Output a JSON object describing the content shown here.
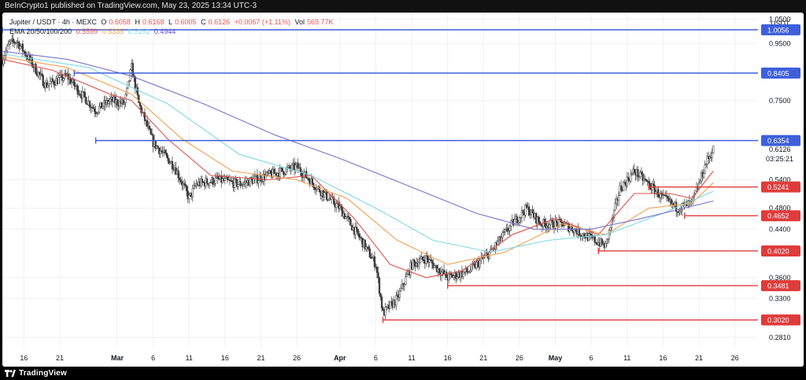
{
  "header": {
    "publisher_line": "BeInCrypto1 published on TradingView.com, May 23, 2025 13:34 UTC-3"
  },
  "legend": {
    "symbol": "Jupiter / USDT · 4h · MEXC",
    "ohlc": [
      {
        "label": "O",
        "value": "0.6058"
      },
      {
        "label": "H",
        "value": "0.6168"
      },
      {
        "label": "L",
        "value": "0.6005"
      },
      {
        "label": "C",
        "value": "0.6126"
      }
    ],
    "change": "+0.0067 (+1.11%)",
    "vol_label": "Vol",
    "vol_value": "569.77K",
    "ema_title": "EMA 20/50/100/200",
    "ema_values": [
      "0.5599",
      "0.5335",
      "0.5151",
      "0.4944"
    ]
  },
  "footer": {
    "brand": "TradingView"
  },
  "chart_data": {
    "type": "candlestick",
    "symbol": "Jupiter / USDT",
    "interval": "4h",
    "exchange": "MEXC",
    "ylabel": "USDT",
    "y_scale": "log",
    "ylim": [
      0.27,
      1.08
    ],
    "y_ticks": [
      {
        "value": 1.05,
        "label": "1.0500"
      },
      {
        "value": 0.95,
        "label": "0.9500"
      },
      {
        "value": 0.75,
        "label": "0.7500"
      },
      {
        "value": 0.54,
        "label": "0.5400"
      },
      {
        "value": 0.48,
        "label": "0.4800"
      },
      {
        "value": 0.44,
        "label": "0.4400"
      },
      {
        "value": 0.36,
        "label": "0.3600"
      },
      {
        "value": 0.33,
        "label": "0.3300"
      },
      {
        "value": 0.281,
        "label": "0.2810"
      }
    ],
    "x_ticks": [
      {
        "date": "2025-02-16",
        "label": "16"
      },
      {
        "date": "2025-02-21",
        "label": "21"
      },
      {
        "date": "2025-03-01",
        "label": "Mar"
      },
      {
        "date": "2025-03-06",
        "label": "6"
      },
      {
        "date": "2025-03-11",
        "label": "11"
      },
      {
        "date": "2025-03-16",
        "label": "16"
      },
      {
        "date": "2025-03-21",
        "label": "21"
      },
      {
        "date": "2025-03-26",
        "label": "26"
      },
      {
        "date": "2025-04-01",
        "label": "Apr"
      },
      {
        "date": "2025-04-06",
        "label": "6"
      },
      {
        "date": "2025-04-11",
        "label": "11"
      },
      {
        "date": "2025-04-16",
        "label": "16"
      },
      {
        "date": "2025-04-21",
        "label": "21"
      },
      {
        "date": "2025-04-26",
        "label": "26"
      },
      {
        "date": "2025-05-01",
        "label": "May"
      },
      {
        "date": "2025-05-06",
        "label": "6"
      },
      {
        "date": "2025-05-11",
        "label": "11"
      },
      {
        "date": "2025-05-16",
        "label": "16"
      },
      {
        "date": "2025-05-21",
        "label": "21"
      },
      {
        "date": "2025-05-26",
        "label": "26"
      }
    ],
    "x_range": [
      "2025-02-13",
      "2025-05-29"
    ],
    "price_path": [
      [
        "2025-02-13",
        0.89
      ],
      [
        "2025-02-14",
        0.95
      ],
      [
        "2025-02-15",
        0.96
      ],
      [
        "2025-02-17",
        0.88
      ],
      [
        "2025-02-19",
        0.8
      ],
      [
        "2025-02-22",
        0.83
      ],
      [
        "2025-02-24",
        0.77
      ],
      [
        "2025-02-26",
        0.72
      ],
      [
        "2025-02-28",
        0.75
      ],
      [
        "2025-03-02",
        0.74
      ],
      [
        "2025-03-03",
        0.86
      ],
      [
        "2025-03-04",
        0.74
      ],
      [
        "2025-03-06",
        0.63
      ],
      [
        "2025-03-09",
        0.57
      ],
      [
        "2025-03-11",
        0.5
      ],
      [
        "2025-03-12",
        0.53
      ],
      [
        "2025-03-15",
        0.54
      ],
      [
        "2025-03-18",
        0.53
      ],
      [
        "2025-03-22",
        0.55
      ],
      [
        "2025-03-26",
        0.57
      ],
      [
        "2025-03-29",
        0.52
      ],
      [
        "2025-04-01",
        0.48
      ],
      [
        "2025-04-04",
        0.42
      ],
      [
        "2025-04-06",
        0.38
      ],
      [
        "2025-04-07",
        0.31
      ],
      [
        "2025-04-09",
        0.33
      ],
      [
        "2025-04-11",
        0.38
      ],
      [
        "2025-04-13",
        0.39
      ],
      [
        "2025-04-16",
        0.36
      ],
      [
        "2025-04-19",
        0.37
      ],
      [
        "2025-04-22",
        0.4
      ],
      [
        "2025-04-25",
        0.45
      ],
      [
        "2025-04-27",
        0.48
      ],
      [
        "2025-04-29",
        0.45
      ],
      [
        "2025-05-02",
        0.45
      ],
      [
        "2025-05-05",
        0.43
      ],
      [
        "2025-05-08",
        0.41
      ],
      [
        "2025-05-10",
        0.52
      ],
      [
        "2025-05-12",
        0.56
      ],
      [
        "2025-05-14",
        0.53
      ],
      [
        "2025-05-16",
        0.5
      ],
      [
        "2025-05-18",
        0.48
      ],
      [
        "2025-05-20",
        0.49
      ],
      [
        "2025-05-21",
        0.53
      ],
      [
        "2025-05-22",
        0.58
      ],
      [
        "2025-05-23",
        0.6126
      ]
    ],
    "ema_series": [
      {
        "name": "EMA 20",
        "color": "#e0504a",
        "last": 0.5599,
        "path": [
          [
            "2025-02-13",
            0.89
          ],
          [
            "2025-02-20",
            0.85
          ],
          [
            "2025-02-28",
            0.77
          ],
          [
            "2025-03-03",
            0.75
          ],
          [
            "2025-03-08",
            0.64
          ],
          [
            "2025-03-14",
            0.55
          ],
          [
            "2025-03-22",
            0.54
          ],
          [
            "2025-03-28",
            0.55
          ],
          [
            "2025-04-03",
            0.46
          ],
          [
            "2025-04-08",
            0.38
          ],
          [
            "2025-04-13",
            0.36
          ],
          [
            "2025-04-18",
            0.37
          ],
          [
            "2025-04-25",
            0.43
          ],
          [
            "2025-05-01",
            0.46
          ],
          [
            "2025-05-07",
            0.43
          ],
          [
            "2025-05-12",
            0.51
          ],
          [
            "2025-05-17",
            0.51
          ],
          [
            "2025-05-20",
            0.5
          ],
          [
            "2025-05-23",
            0.5599
          ]
        ]
      },
      {
        "name": "EMA 50",
        "color": "#f0a050",
        "last": 0.5335,
        "path": [
          [
            "2025-02-13",
            0.9
          ],
          [
            "2025-02-22",
            0.86
          ],
          [
            "2025-03-03",
            0.77
          ],
          [
            "2025-03-10",
            0.64
          ],
          [
            "2025-03-17",
            0.56
          ],
          [
            "2025-03-26",
            0.54
          ],
          [
            "2025-04-02",
            0.5
          ],
          [
            "2025-04-09",
            0.42
          ],
          [
            "2025-04-16",
            0.38
          ],
          [
            "2025-04-24",
            0.4
          ],
          [
            "2025-05-02",
            0.45
          ],
          [
            "2025-05-08",
            0.43
          ],
          [
            "2025-05-14",
            0.48
          ],
          [
            "2025-05-20",
            0.49
          ],
          [
            "2025-05-23",
            0.5335
          ]
        ]
      },
      {
        "name": "EMA 100",
        "color": "#7fd8e3",
        "last": 0.5151,
        "path": [
          [
            "2025-02-13",
            0.91
          ],
          [
            "2025-02-25",
            0.86
          ],
          [
            "2025-03-08",
            0.74
          ],
          [
            "2025-03-18",
            0.6
          ],
          [
            "2025-03-28",
            0.55
          ],
          [
            "2025-04-06",
            0.48
          ],
          [
            "2025-04-14",
            0.42
          ],
          [
            "2025-04-22",
            0.4
          ],
          [
            "2025-04-30",
            0.42
          ],
          [
            "2025-05-08",
            0.43
          ],
          [
            "2025-05-16",
            0.47
          ],
          [
            "2025-05-23",
            0.5151
          ]
        ]
      },
      {
        "name": "EMA 200",
        "color": "#7b72cc",
        "last": 0.4944,
        "path": [
          [
            "2025-02-13",
            0.92
          ],
          [
            "2025-02-22",
            0.89
          ],
          [
            "2025-03-03",
            0.83
          ],
          [
            "2025-03-13",
            0.74
          ],
          [
            "2025-03-23",
            0.65
          ],
          [
            "2025-04-01",
            0.59
          ],
          [
            "2025-04-10",
            0.53
          ],
          [
            "2025-04-20",
            0.47
          ],
          [
            "2025-04-28",
            0.44
          ],
          [
            "2025-05-06",
            0.44
          ],
          [
            "2025-05-13",
            0.46
          ],
          [
            "2025-05-23",
            0.4944
          ]
        ]
      }
    ],
    "horizontal_levels": [
      {
        "value": 1.0056,
        "label": "1.0056",
        "color": "#3d5fdb",
        "from_date": "2025-02-13"
      },
      {
        "value": 0.8405,
        "label": "0.8405",
        "color": "#3d5fdb",
        "from_date": "2025-02-23"
      },
      {
        "value": 0.6354,
        "label": "0.6354",
        "color": "#3d5fdb",
        "from_date": "2025-02-26"
      },
      {
        "value": 0.5241,
        "label": "0.5241",
        "color": "#e03b3b",
        "from_date": "2025-05-14"
      },
      {
        "value": 0.4652,
        "label": "0.4652",
        "color": "#e03b3b",
        "from_date": "2025-05-19"
      },
      {
        "value": 0.402,
        "label": "0.4020",
        "color": "#e03b3b",
        "from_date": "2025-05-07"
      },
      {
        "value": 0.3481,
        "label": "0.3481",
        "color": "#e03b3b",
        "from_date": "2025-04-16"
      },
      {
        "value": 0.302,
        "label": "0.3020",
        "color": "#e03b3b",
        "from_date": "2025-04-07"
      }
    ],
    "current_price": {
      "value": 0.6126,
      "label": "0.6126",
      "countdown": "03:25:21"
    },
    "colors": {
      "candles": "#3a3a3a",
      "grid": "#f0f0f0",
      "text": "#131722",
      "background": "#ffffff"
    }
  }
}
